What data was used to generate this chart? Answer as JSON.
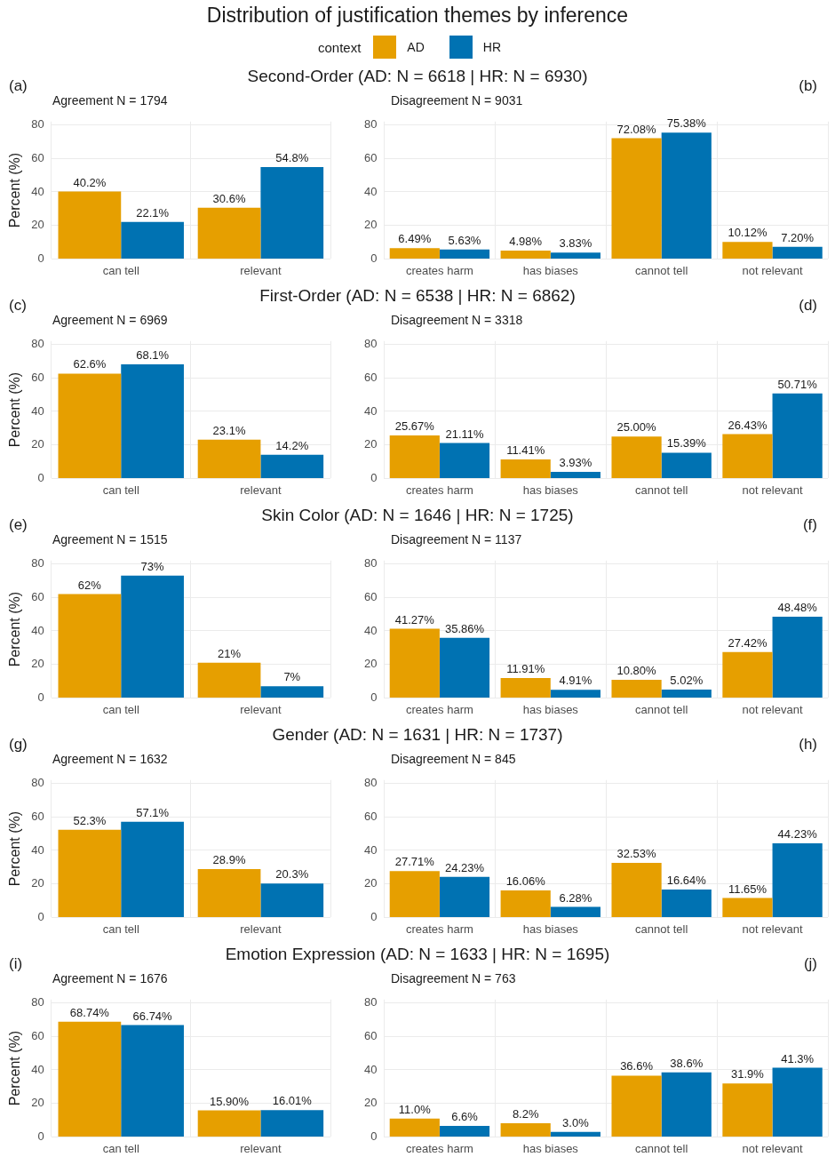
{
  "chart_data": [
    {
      "type": "other",
      "title": "Distribution of justification themes by inference"
    },
    {
      "type": "bar",
      "title": "Second-Order (AD: N = 6618 | HR: N = 6930)",
      "subtitle": "Agreement N = 1794",
      "annotations": [
        "(a)"
      ],
      "ylabel": "Percent (%)",
      "legend": "top",
      "legend_title": "context",
      "categories": [
        "can tell",
        "relevant"
      ],
      "ylim": [
        0,
        82
      ],
      "yticks": [
        0,
        20,
        40,
        60,
        80
      ],
      "grid": true,
      "series": [
        {
          "name": "AD",
          "color": "#e69f00",
          "values": [
            40.2,
            30.6
          ],
          "value_labels": [
            "40.2%",
            "30.6%"
          ]
        },
        {
          "name": "HR",
          "color": "#0072b2",
          "values": [
            22.1,
            54.8
          ],
          "value_labels": [
            "22.1%",
            "54.8%"
          ]
        }
      ]
    },
    {
      "type": "bar",
      "subtitle": "Disagreement N = 9031",
      "annotations": [
        "(b)"
      ],
      "categories": [
        "creates harm",
        "has biases",
        "cannot tell",
        "not relevant"
      ],
      "ylim": [
        0,
        82
      ],
      "yticks": [
        0,
        20,
        40,
        60,
        80
      ],
      "grid": true,
      "series": [
        {
          "color": "#e69f00",
          "values": [
            6.49,
            4.98,
            72.08,
            10.12
          ],
          "value_labels": [
            "6.49%",
            "4.98%",
            "72.08%",
            "10.12%"
          ]
        },
        {
          "color": "#0072b2",
          "values": [
            5.63,
            3.83,
            75.38,
            7.2
          ],
          "value_labels": [
            "5.63%",
            "3.83%",
            "75.38%",
            "7.20%"
          ]
        }
      ]
    },
    {
      "type": "bar",
      "title": "First-Order (AD: N = 6538 | HR: N = 6862)",
      "subtitle": "Agreement N = 6969",
      "annotations": [
        "(c)"
      ],
      "ylabel": "Percent (%)",
      "categories": [
        "can tell",
        "relevant"
      ],
      "ylim": [
        0,
        82
      ],
      "yticks": [
        0,
        20,
        40,
        60,
        80
      ],
      "grid": true,
      "series": [
        {
          "color": "#e69f00",
          "values": [
            62.6,
            23.1
          ],
          "value_labels": [
            "62.6%",
            "23.1%"
          ]
        },
        {
          "color": "#0072b2",
          "values": [
            68.1,
            14.2
          ],
          "value_labels": [
            "68.1%",
            "14.2%"
          ]
        }
      ]
    },
    {
      "type": "bar",
      "subtitle": "Disagreement N = 3318",
      "annotations": [
        "(d)"
      ],
      "categories": [
        "creates harm",
        "has biases",
        "cannot tell",
        "not relevant"
      ],
      "ylim": [
        0,
        82
      ],
      "yticks": [
        0,
        20,
        40,
        60,
        80
      ],
      "grid": true,
      "series": [
        {
          "color": "#e69f00",
          "values": [
            25.67,
            11.41,
            25.0,
            26.43
          ],
          "value_labels": [
            "25.67%",
            "11.41%",
            "25.00%",
            "26.43%"
          ]
        },
        {
          "color": "#0072b2",
          "values": [
            21.11,
            3.93,
            15.39,
            50.71
          ],
          "value_labels": [
            "21.11%",
            "3.93%",
            "15.39%",
            "50.71%"
          ]
        }
      ]
    },
    {
      "type": "bar",
      "title": "Skin Color (AD: N = 1646 | HR: N = 1725)",
      "subtitle": "Agreement N = 1515",
      "annotations": [
        "(e)"
      ],
      "ylabel": "Percent (%)",
      "categories": [
        "can tell",
        "relevant"
      ],
      "ylim": [
        0,
        82
      ],
      "yticks": [
        0,
        20,
        40,
        60,
        80
      ],
      "grid": true,
      "series": [
        {
          "color": "#e69f00",
          "values": [
            62,
            21
          ],
          "value_labels": [
            "62%",
            "21%"
          ]
        },
        {
          "color": "#0072b2",
          "values": [
            73,
            7
          ],
          "value_labels": [
            "73%",
            "7%"
          ]
        }
      ]
    },
    {
      "type": "bar",
      "subtitle": "Disagreement N = 1137",
      "annotations": [
        "(f)"
      ],
      "categories": [
        "creates harm",
        "has biases",
        "cannot tell",
        "not relevant"
      ],
      "ylim": [
        0,
        82
      ],
      "yticks": [
        0,
        20,
        40,
        60,
        80
      ],
      "grid": true,
      "series": [
        {
          "color": "#e69f00",
          "values": [
            41.27,
            11.91,
            10.8,
            27.42
          ],
          "value_labels": [
            "41.27%",
            "11.91%",
            "10.80%",
            "27.42%"
          ]
        },
        {
          "color": "#0072b2",
          "values": [
            35.86,
            4.91,
            5.02,
            48.48
          ],
          "value_labels": [
            "35.86%",
            "4.91%",
            "5.02%",
            "48.48%"
          ]
        }
      ]
    },
    {
      "type": "bar",
      "title": "Gender (AD: N = 1631 | HR: N = 1737)",
      "subtitle": "Agreement N = 1632",
      "annotations": [
        "(g)"
      ],
      "ylabel": "Percent (%)",
      "categories": [
        "can tell",
        "relevant"
      ],
      "ylim": [
        0,
        82
      ],
      "yticks": [
        0,
        20,
        40,
        60,
        80
      ],
      "grid": true,
      "series": [
        {
          "color": "#e69f00",
          "values": [
            52.3,
            28.9
          ],
          "value_labels": [
            "52.3%",
            "28.9%"
          ]
        },
        {
          "color": "#0072b2",
          "values": [
            57.1,
            20.3
          ],
          "value_labels": [
            "57.1%",
            "20.3%"
          ]
        }
      ]
    },
    {
      "type": "bar",
      "subtitle": "Disagreement N = 845",
      "annotations": [
        "(h)"
      ],
      "categories": [
        "creates harm",
        "has biases",
        "cannot tell",
        "not relevant"
      ],
      "ylim": [
        0,
        82
      ],
      "yticks": [
        0,
        20,
        40,
        60,
        80
      ],
      "grid": true,
      "series": [
        {
          "color": "#e69f00",
          "values": [
            27.71,
            16.06,
            32.53,
            11.65
          ],
          "value_labels": [
            "27.71%",
            "16.06%",
            "32.53%",
            "11.65%"
          ]
        },
        {
          "color": "#0072b2",
          "values": [
            24.23,
            6.28,
            16.64,
            44.23
          ],
          "value_labels": [
            "24.23%",
            "6.28%",
            "16.64%",
            "44.23%"
          ]
        }
      ]
    },
    {
      "type": "bar",
      "title": "Emotion Expression (AD: N = 1633 | HR: N = 1695)",
      "subtitle": "Agreement N = 1676",
      "annotations": [
        "(i)"
      ],
      "ylabel": "Percent (%)",
      "categories": [
        "can tell",
        "relevant"
      ],
      "ylim": [
        0,
        82
      ],
      "yticks": [
        0,
        20,
        40,
        60,
        80
      ],
      "grid": true,
      "series": [
        {
          "color": "#e69f00",
          "values": [
            68.74,
            15.9
          ],
          "value_labels": [
            "68.74%",
            "15.90%"
          ]
        },
        {
          "color": "#0072b2",
          "values": [
            66.74,
            16.01
          ],
          "value_labels": [
            "66.74%",
            "16.01%"
          ]
        }
      ]
    },
    {
      "type": "bar",
      "subtitle": "Disagreement N = 763",
      "annotations": [
        "(j)"
      ],
      "categories": [
        "creates harm",
        "has biases",
        "cannot tell",
        "not relevant"
      ],
      "ylim": [
        0,
        82
      ],
      "yticks": [
        0,
        20,
        40,
        60,
        80
      ],
      "grid": true,
      "series": [
        {
          "color": "#e69f00",
          "values": [
            11.0,
            8.2,
            36.6,
            31.9
          ],
          "value_labels": [
            "11.0%",
            "8.2%",
            "36.6%",
            "31.9%"
          ]
        },
        {
          "color": "#0072b2",
          "values": [
            6.6,
            3.0,
            38.6,
            41.3
          ],
          "value_labels": [
            "6.6%",
            "3.0%",
            "38.6%",
            "41.3%"
          ]
        }
      ]
    }
  ]
}
